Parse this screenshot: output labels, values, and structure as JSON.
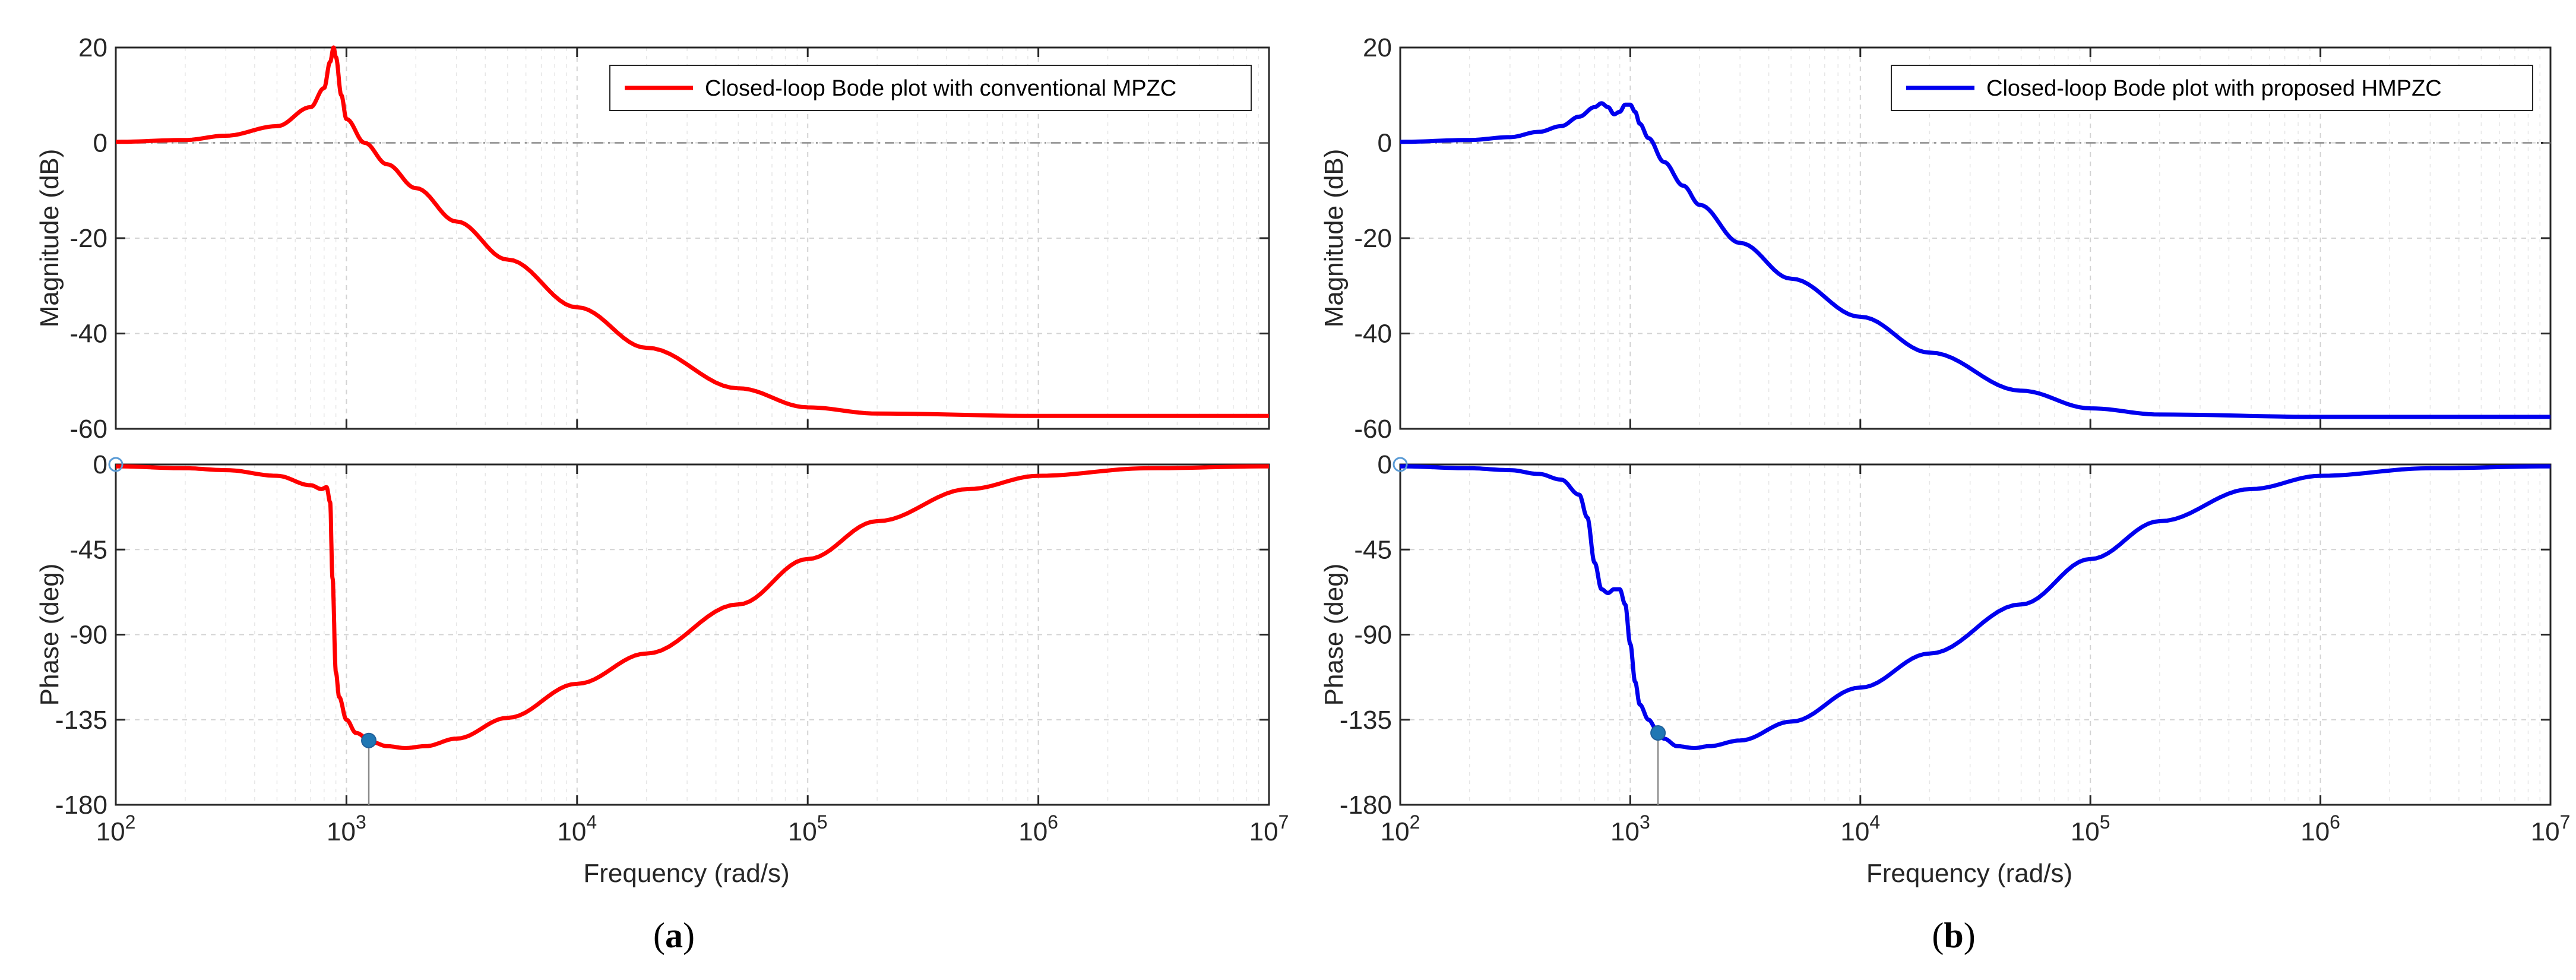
{
  "chart_data": [
    {
      "type": "line",
      "panel_label": "(a)",
      "legend_text": "Closed-loop Bode plot with conventional MPZC",
      "legend_placement": "top-right",
      "color": "#ff0000",
      "xlabel": "Frequency  (rad/s)",
      "xscale": "log",
      "xlim": [
        100,
        10000000
      ],
      "x_ticks": [
        100,
        1000,
        10000,
        100000,
        1000000,
        10000000
      ],
      "x_tick_labels": [
        {
          "base": "10",
          "exp": "2"
        },
        {
          "base": "10",
          "exp": "3"
        },
        {
          "base": "10",
          "exp": "4"
        },
        {
          "base": "10",
          "exp": "5"
        },
        {
          "base": "10",
          "exp": "6"
        },
        {
          "base": "10",
          "exp": "7"
        }
      ],
      "grid": true,
      "magnitude": {
        "ylabel": "Magnitude (dB)",
        "ylim": [
          -60,
          20
        ],
        "y_ticks": [
          -60,
          -40,
          -20,
          0,
          20
        ],
        "y_tick_labels": [
          "-60",
          "-40",
          "-20",
          "0",
          "20"
        ],
        "x": [
          100,
          200,
          300,
          500,
          700,
          800,
          850,
          880,
          900,
          950,
          1000,
          1200,
          1500,
          2000,
          3000,
          5000,
          10000,
          20000,
          50000,
          100000,
          200000,
          1000000,
          10000000
        ],
        "y": [
          0.2,
          0.6,
          1.5,
          3.5,
          7.5,
          11.5,
          17,
          20,
          18,
          10,
          5,
          0,
          -4.5,
          -9.5,
          -16.5,
          -24.5,
          -34.5,
          -43,
          -51.5,
          -55.5,
          -56.8,
          -57.3,
          -57.3
        ]
      },
      "phase": {
        "ylabel": "Phase (deg)",
        "ylim": [
          -180,
          0
        ],
        "y_ticks": [
          -180,
          -135,
          -90,
          -45,
          0
        ],
        "y_tick_labels": [
          "-180",
          "-135",
          "-90",
          "-45",
          "0"
        ],
        "x": [
          100,
          200,
          300,
          500,
          700,
          780,
          820,
          850,
          870,
          900,
          930,
          1000,
          1100,
          1300,
          1500,
          1800,
          2200,
          3000,
          5000,
          10000,
          20000,
          50000,
          100000,
          200000,
          500000,
          1000000,
          3000000,
          10000000
        ],
        "y": [
          -1,
          -2,
          -3,
          -6,
          -11,
          -13,
          -12,
          -20,
          -60,
          -110,
          -123,
          -135,
          -142,
          -147,
          -149,
          -150,
          -149,
          -145,
          -134,
          -116,
          -100,
          -74,
          -50,
          -30,
          -13,
          -6,
          -2,
          -1
        ],
        "markers": [
          {
            "x": 100,
            "y": 0,
            "style": "open"
          },
          {
            "x": 1250,
            "y": -146,
            "style": "filled"
          }
        ]
      }
    },
    {
      "type": "line",
      "panel_label": "(b)",
      "legend_text": "Closed-loop Bode plot with proposed HMPZC",
      "legend_placement": "top-right",
      "color": "#0000ee",
      "xlabel": "Frequency  (rad/s)",
      "xscale": "log",
      "xlim": [
        100,
        10000000
      ],
      "x_ticks": [
        100,
        1000,
        10000,
        100000,
        1000000,
        10000000
      ],
      "x_tick_labels": [
        {
          "base": "10",
          "exp": "2"
        },
        {
          "base": "10",
          "exp": "3"
        },
        {
          "base": "10",
          "exp": "4"
        },
        {
          "base": "10",
          "exp": "5"
        },
        {
          "base": "10",
          "exp": "6"
        },
        {
          "base": "10",
          "exp": "7"
        }
      ],
      "grid": true,
      "magnitude": {
        "ylabel": "Magnitude (dB)",
        "ylim": [
          -60,
          20
        ],
        "y_ticks": [
          -60,
          -40,
          -20,
          0,
          20
        ],
        "y_tick_labels": [
          "-60",
          "-40",
          "-20",
          "0",
          "20"
        ],
        "x": [
          100,
          200,
          300,
          400,
          500,
          600,
          700,
          750,
          800,
          850,
          900,
          950,
          1000,
          1050,
          1100,
          1200,
          1400,
          1700,
          2000,
          3000,
          5000,
          10000,
          20000,
          50000,
          100000,
          200000,
          1000000,
          10000000
        ],
        "y": [
          0.2,
          0.6,
          1.2,
          2.3,
          3.5,
          5.5,
          7.5,
          8.3,
          7.5,
          6,
          6.5,
          8,
          8,
          6.5,
          4,
          1,
          -4,
          -9,
          -13,
          -21,
          -28.5,
          -36.5,
          -44,
          -52,
          -55.7,
          -57,
          -57.5,
          -57.5
        ]
      },
      "phase": {
        "ylabel": "Phase (deg)",
        "ylim": [
          -180,
          0
        ],
        "y_ticks": [
          -180,
          -135,
          -90,
          -45,
          0
        ],
        "y_tick_labels": [
          "-180",
          "-135",
          "-90",
          "-45",
          "0"
        ],
        "x": [
          100,
          200,
          300,
          400,
          500,
          600,
          650,
          700,
          750,
          800,
          850,
          900,
          950,
          1000,
          1050,
          1100,
          1200,
          1300,
          1400,
          1600,
          1900,
          2200,
          3000,
          5000,
          10000,
          20000,
          50000,
          100000,
          200000,
          500000,
          1000000,
          3000000,
          10000000
        ],
        "y": [
          -1,
          -2,
          -3,
          -5,
          -8,
          -16,
          -28,
          -52,
          -66,
          -68,
          -66,
          -66,
          -74,
          -95,
          -115,
          -127,
          -135,
          -140,
          -145,
          -149,
          -150,
          -149,
          -146,
          -136,
          -118,
          -100,
          -74,
          -50,
          -30,
          -13,
          -6,
          -2,
          -1
        ],
        "markers": [
          {
            "x": 100,
            "y": 0,
            "style": "open"
          },
          {
            "x": 1320,
            "y": -142,
            "style": "filled"
          }
        ]
      }
    }
  ]
}
